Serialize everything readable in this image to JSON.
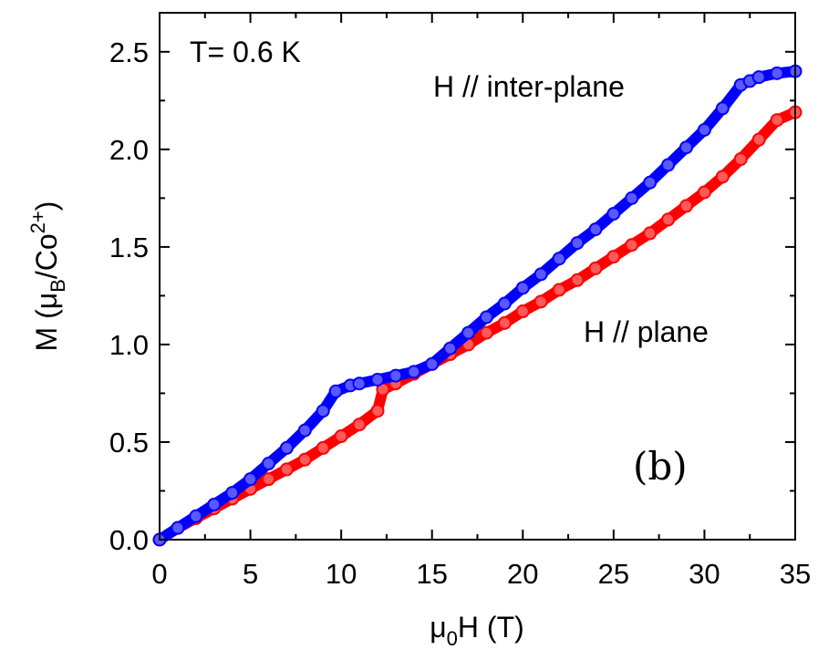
{
  "chart_data": {
    "type": "line",
    "xlabel": {
      "main": "μ",
      "sub": "0",
      "rest": "H (T)"
    },
    "ylabel": {
      "main": "M (μ",
      "sub": "B",
      "mid": "/Co",
      "sup": "2+",
      "end": ")"
    },
    "xlim": [
      0,
      35
    ],
    "ylim": [
      0,
      2.7
    ],
    "xticks": [
      "0",
      "5",
      "10",
      "15",
      "20",
      "25",
      "30",
      "35"
    ],
    "yticks": [
      "0.0",
      "0.5",
      "1.0",
      "1.5",
      "2.0",
      "2.5"
    ],
    "grid": false,
    "annotations": {
      "temperature": "T= 0.6 K",
      "inter_plane": "H // inter-plane",
      "plane": "H // plane",
      "panel": "(b)"
    },
    "series": [
      {
        "name": "H // plane",
        "color": "#ff0000",
        "x": [
          0,
          1,
          2,
          3,
          4,
          5,
          6,
          7,
          8,
          9,
          10,
          11,
          12,
          12.3,
          13,
          14,
          15,
          16,
          17,
          18,
          19,
          20,
          21,
          22,
          23,
          24,
          25,
          26,
          27,
          28,
          29,
          30,
          31,
          32,
          33,
          34,
          35
        ],
        "y": [
          0.0,
          0.06,
          0.11,
          0.16,
          0.21,
          0.26,
          0.31,
          0.36,
          0.41,
          0.47,
          0.53,
          0.59,
          0.66,
          0.77,
          0.8,
          0.85,
          0.9,
          0.95,
          1.0,
          1.06,
          1.11,
          1.17,
          1.22,
          1.28,
          1.33,
          1.39,
          1.45,
          1.51,
          1.57,
          1.64,
          1.71,
          1.78,
          1.86,
          1.95,
          2.05,
          2.15,
          2.19
        ]
      },
      {
        "name": "H // inter-plane",
        "color": "#0000ff",
        "x": [
          0,
          1,
          2,
          3,
          4,
          5,
          6,
          7,
          8,
          9,
          9.7,
          10.5,
          11,
          12,
          13,
          14,
          15,
          16,
          17,
          18,
          19,
          20,
          21,
          22,
          23,
          24,
          25,
          26,
          27,
          28,
          29,
          30,
          31,
          32,
          32.5,
          33,
          34,
          35
        ],
        "y": [
          0.0,
          0.06,
          0.12,
          0.18,
          0.24,
          0.31,
          0.39,
          0.47,
          0.56,
          0.66,
          0.76,
          0.79,
          0.8,
          0.82,
          0.84,
          0.86,
          0.9,
          0.98,
          1.06,
          1.14,
          1.21,
          1.29,
          1.36,
          1.44,
          1.52,
          1.59,
          1.67,
          1.75,
          1.83,
          1.92,
          2.01,
          2.1,
          2.21,
          2.33,
          2.35,
          2.37,
          2.39,
          2.4
        ]
      }
    ]
  }
}
